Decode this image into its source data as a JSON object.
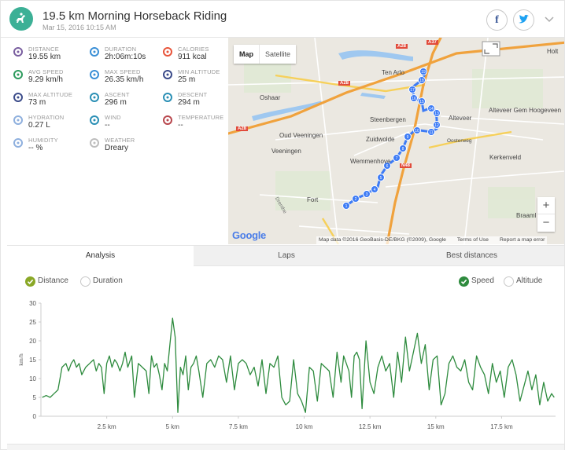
{
  "header": {
    "title": "19.5 km Morning Horseback Riding",
    "date": "Mar 15, 2016 10:15 AM",
    "facebook": "f",
    "twitter": "t"
  },
  "stats": [
    {
      "label": "Distance",
      "value": "19.55 km",
      "icon": "route-icon",
      "color": "#7a5fa0"
    },
    {
      "label": "Duration",
      "value": "2h:06m:10s",
      "icon": "stopwatch-icon",
      "color": "#3a8fd6"
    },
    {
      "label": "Calories",
      "value": "911 kcal",
      "icon": "flame-icon",
      "color": "#e8553b"
    },
    {
      "label": "Avg speed",
      "value": "9.29 km/h",
      "icon": "speedometer-icon",
      "color": "#2e9b5e"
    },
    {
      "label": "Max speed",
      "value": "26.35 km/h",
      "icon": "speedometer-max-icon",
      "color": "#3a8fd6"
    },
    {
      "label": "Min altitude",
      "value": "25 m",
      "icon": "mountain-icon",
      "color": "#3b4b8a"
    },
    {
      "label": "Max altitude",
      "value": "73 m",
      "icon": "mountain-peak-icon",
      "color": "#3b4b8a"
    },
    {
      "label": "Ascent",
      "value": "296 m",
      "icon": "ascent-icon",
      "color": "#2a8fb5"
    },
    {
      "label": "Descent",
      "value": "294 m",
      "icon": "descent-icon",
      "color": "#2a8fb5"
    },
    {
      "label": "Hydration",
      "value": "0.27 L",
      "icon": "water-drops-icon",
      "color": "#8fb0de"
    },
    {
      "label": "Wind",
      "value": "--",
      "icon": "wind-icon",
      "color": "#2a8fb5"
    },
    {
      "label": "Temperature",
      "value": "--",
      "icon": "thermometer-icon",
      "color": "#b8474d"
    },
    {
      "label": "Humidity",
      "value": "-- %",
      "icon": "humidity-icon",
      "color": "#8fb0de"
    },
    {
      "label": "Weather",
      "value": "Dreary",
      "icon": "cloud-icon",
      "color": "#bdbdbd"
    }
  ],
  "map": {
    "type_map": "Map",
    "type_satellite": "Satellite",
    "zoom_in": "+",
    "zoom_out": "−",
    "google": "Google",
    "attribution_data": "Map data ©2016 GeoBasis-DE/BKG (©2009), Google",
    "attribution_terms": "Terms of Use",
    "attribution_report": "Report a map error",
    "places": [
      "Oshaar",
      "Ten Arlo",
      "Holt",
      "Steenbergen",
      "Alteveer",
      "Alteveer Gem Hoogeveen",
      "Oud Veeningen",
      "Veeningen",
      "Zuidwolde",
      "Wemmenhove",
      "Kerkenveld",
      "Fort",
      "Braaml",
      "Oosterweg"
    ],
    "roads": [
      "A28",
      "A28",
      "A28",
      "A37",
      "N48",
      "Drenthe"
    ],
    "laps": [
      1,
      2,
      3,
      4,
      5,
      6,
      7,
      8,
      9,
      10,
      11,
      12,
      13,
      14,
      15,
      16,
      17,
      18,
      19
    ]
  },
  "tabs": [
    "Analysis",
    "Laps",
    "Best distances"
  ],
  "options": {
    "distance": "Distance",
    "duration": "Duration",
    "speed": "Speed",
    "altitude": "Altitude"
  },
  "chart_data": {
    "type": "line",
    "ylabel": "km/h",
    "ylim": [
      0,
      30
    ],
    "yticks": [
      0,
      5,
      10,
      15,
      20,
      25,
      30
    ],
    "xlim": [
      0,
      19.55
    ],
    "xticks": [
      2.5,
      5,
      7.5,
      10,
      12.5,
      15,
      17.5
    ],
    "xtick_labels": [
      "2.5 km",
      "5 km",
      "7.5 km",
      "10 km",
      "12.5 km",
      "15 km",
      "17.5 km"
    ],
    "color": "#2e8b3e",
    "series": [
      {
        "name": "Speed",
        "x": [
          0.05,
          0.2,
          0.35,
          0.5,
          0.65,
          0.8,
          0.95,
          1.05,
          1.15,
          1.25,
          1.35,
          1.45,
          1.55,
          1.7,
          1.85,
          2.0,
          2.1,
          2.2,
          2.3,
          2.4,
          2.5,
          2.6,
          2.7,
          2.8,
          2.9,
          3.0,
          3.1,
          3.2,
          3.3,
          3.45,
          3.55,
          3.7,
          3.85,
          4.0,
          4.1,
          4.2,
          4.3,
          4.4,
          4.5,
          4.6,
          4.7,
          4.8,
          4.9,
          5.0,
          5.1,
          5.2,
          5.3,
          5.4,
          5.5,
          5.6,
          5.7,
          5.8,
          5.9,
          6.0,
          6.15,
          6.3,
          6.45,
          6.6,
          6.75,
          6.9,
          7.05,
          7.2,
          7.35,
          7.5,
          7.65,
          7.8,
          7.95,
          8.1,
          8.25,
          8.4,
          8.55,
          8.7,
          8.85,
          9.0,
          9.15,
          9.3,
          9.45,
          9.6,
          9.75,
          9.9,
          10.05,
          10.2,
          10.35,
          10.5,
          10.65,
          10.8,
          10.95,
          11.1,
          11.25,
          11.4,
          11.5,
          11.6,
          11.7,
          11.8,
          11.9,
          12.0,
          12.1,
          12.2,
          12.35,
          12.5,
          12.65,
          12.8,
          12.95,
          13.1,
          13.25,
          13.4,
          13.55,
          13.7,
          13.85,
          14.0,
          14.15,
          14.3,
          14.45,
          14.6,
          14.75,
          14.9,
          15.05,
          15.2,
          15.35,
          15.5,
          15.65,
          15.8,
          15.95,
          16.1,
          16.25,
          16.4,
          16.55,
          16.7,
          16.85,
          17.0,
          17.15,
          17.3,
          17.45,
          17.6,
          17.75,
          17.9,
          18.05,
          18.2,
          18.35,
          18.5,
          18.65,
          18.8,
          18.95,
          19.1,
          19.25,
          19.4,
          19.5
        ],
        "values": [
          5,
          5.5,
          5,
          6,
          7,
          13,
          14,
          12,
          14,
          15,
          13,
          14,
          11,
          13,
          14,
          15,
          12,
          14,
          13,
          6,
          14,
          16,
          13,
          15,
          14,
          12,
          14,
          17,
          13,
          16,
          5,
          14,
          13,
          12,
          6,
          16,
          13,
          14,
          11,
          7,
          14,
          12,
          19,
          26,
          21,
          1,
          13,
          11,
          16,
          7,
          13,
          14,
          16,
          12,
          5,
          14,
          15,
          13,
          16,
          15,
          9,
          16,
          7,
          14,
          15,
          14,
          11,
          13,
          8,
          15,
          6,
          14,
          13,
          16,
          5,
          3,
          4,
          15,
          6,
          4,
          1,
          13,
          12,
          4,
          14,
          13,
          12,
          5,
          17,
          9,
          16,
          14,
          12,
          5,
          16,
          17,
          15,
          2,
          20,
          9,
          6,
          13,
          16,
          12,
          14,
          5,
          17,
          9,
          21,
          12,
          17,
          22,
          14,
          19,
          7,
          15,
          16,
          3,
          6,
          14,
          16,
          13,
          12,
          15,
          9,
          7,
          16,
          13,
          11,
          6,
          14,
          9,
          12,
          5,
          13,
          15,
          11,
          4,
          8,
          12,
          7,
          11,
          3,
          9,
          4,
          6,
          5
        ]
      }
    ]
  }
}
